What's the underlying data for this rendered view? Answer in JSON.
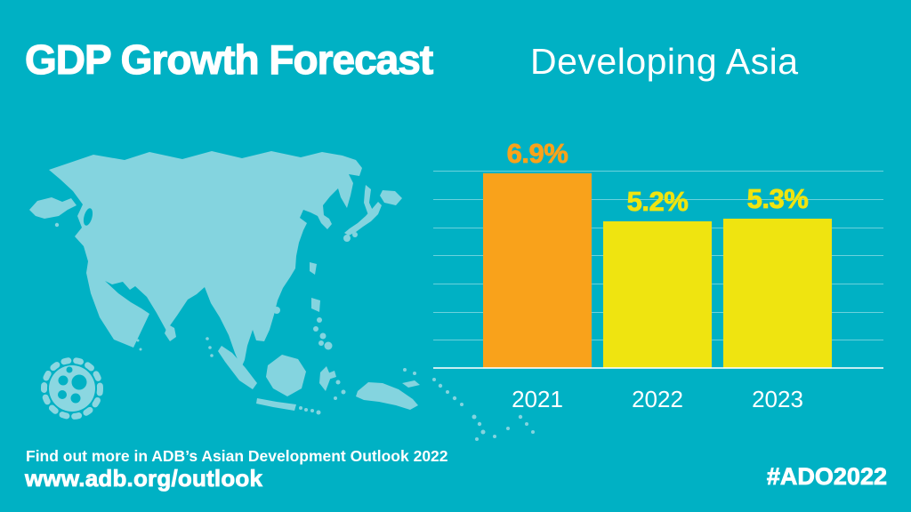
{
  "header": {
    "title": "GDP Growth Forecast",
    "region": "Developing Asia"
  },
  "chart_data": {
    "type": "bar",
    "title": "GDP Growth Forecast",
    "subtitle": "Developing Asia",
    "categories": [
      "2021",
      "2022",
      "2023"
    ],
    "values": [
      6.9,
      5.2,
      5.3
    ],
    "value_labels": [
      "6.9%",
      "5.2%",
      "5.3%"
    ],
    "unit": "%",
    "xlabel": "",
    "ylabel": "",
    "ylim": [
      0,
      7
    ],
    "gridline_interval": 1,
    "grid": true,
    "y_tick_labels_shown": false,
    "legend": "none",
    "bar_colors": [
      "#F9A21B",
      "#EFE410",
      "#EFE410"
    ],
    "label_colors": [
      "#F9A21B",
      "#EFE410",
      "#EFE410"
    ]
  },
  "footer": {
    "more_info": "Find out more in ADB’s Asian Development Outlook 2022",
    "url": "www.adb.org/outlook",
    "hashtag": "#ADO2022"
  },
  "colors": {
    "background": "#00B1C4",
    "map": "#84D4DF",
    "orange": "#F9A21B",
    "yellow": "#EFE410",
    "text": "#FFFFFF",
    "gridline": "rgba(255,255,255,0.42)"
  },
  "icons": {
    "map": "asia-map-silhouette",
    "virus": "coronavirus-icon"
  }
}
